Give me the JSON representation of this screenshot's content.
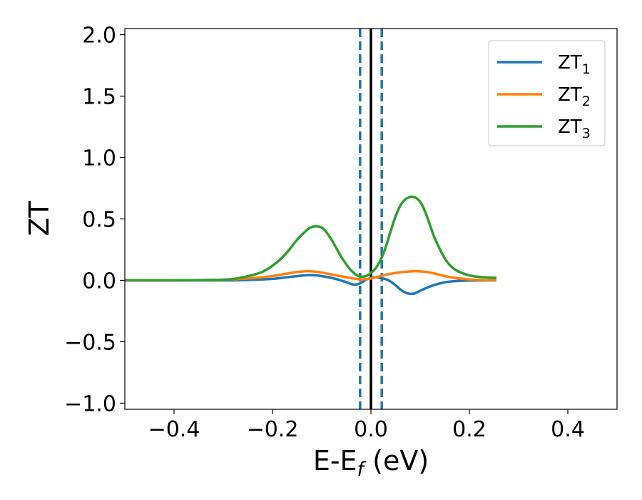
{
  "chart_data": {
    "type": "line",
    "title": "",
    "xlabel": "E-E",
    "xlabel_subscript": "f",
    "xlabel_suffix": " (eV)",
    "ylabel": "ZT",
    "xlim": [
      -0.5,
      0.5
    ],
    "ylim": [
      -1.05,
      2.05
    ],
    "xticks": [
      -0.4,
      -0.2,
      0.0,
      0.2,
      0.4
    ],
    "xtick_labels": [
      "−0.4",
      "−0.2",
      "0.0",
      "0.2",
      "0.4"
    ],
    "yticks": [
      -1.0,
      -0.5,
      0.0,
      0.5,
      1.0,
      1.5,
      2.0
    ],
    "ytick_labels": [
      "−1.0",
      "−0.5",
      "0.0",
      "0.5",
      "1.0",
      "1.5",
      "2.0"
    ],
    "grid": false,
    "legend_position": "top-right",
    "series": [
      {
        "name": "ZT",
        "subscript": "1",
        "color": "#1f77b4",
        "x": [
          -0.5,
          -0.4,
          -0.3,
          -0.25,
          -0.2,
          -0.16,
          -0.13,
          -0.11,
          -0.09,
          -0.07,
          -0.05,
          -0.04,
          -0.03,
          -0.02,
          -0.01,
          0.0,
          0.01,
          0.02,
          0.03,
          0.04,
          0.05,
          0.06,
          0.07,
          0.08,
          0.09,
          0.1,
          0.12,
          0.14,
          0.16,
          0.2,
          0.255
        ],
        "y": [
          0.0,
          0.0,
          0.0,
          0.003,
          0.012,
          0.03,
          0.042,
          0.04,
          0.028,
          0.01,
          -0.015,
          -0.03,
          -0.035,
          -0.02,
          0.005,
          0.02,
          0.025,
          0.018,
          0.01,
          -0.01,
          -0.04,
          -0.075,
          -0.1,
          -0.11,
          -0.105,
          -0.085,
          -0.05,
          -0.025,
          -0.01,
          -0.002,
          0.0
        ]
      },
      {
        "name": "ZT",
        "subscript": "2",
        "color": "#ff7f0e",
        "x": [
          -0.5,
          -0.4,
          -0.3,
          -0.25,
          -0.2,
          -0.17,
          -0.15,
          -0.13,
          -0.11,
          -0.09,
          -0.07,
          -0.05,
          -0.03,
          -0.02,
          -0.01,
          0.0,
          0.01,
          0.02,
          0.03,
          0.05,
          0.07,
          0.09,
          0.11,
          0.13,
          0.15,
          0.18,
          0.21,
          0.255
        ],
        "y": [
          0.0,
          0.0,
          0.005,
          0.015,
          0.035,
          0.055,
          0.068,
          0.075,
          0.07,
          0.055,
          0.04,
          0.025,
          0.012,
          0.008,
          0.01,
          0.015,
          0.025,
          0.035,
          0.045,
          0.06,
          0.07,
          0.075,
          0.07,
          0.055,
          0.035,
          0.015,
          0.005,
          0.0
        ]
      },
      {
        "name": "ZT",
        "subscript": "3",
        "color": "#2ca02c",
        "x": [
          -0.5,
          -0.4,
          -0.3,
          -0.26,
          -0.22,
          -0.19,
          -0.17,
          -0.15,
          -0.13,
          -0.12,
          -0.11,
          -0.1,
          -0.09,
          -0.08,
          -0.07,
          -0.06,
          -0.05,
          -0.04,
          -0.03,
          -0.02,
          -0.01,
          0.0,
          0.01,
          0.02,
          0.03,
          0.04,
          0.05,
          0.06,
          0.07,
          0.08,
          0.085,
          0.09,
          0.1,
          0.11,
          0.12,
          0.13,
          0.15,
          0.17,
          0.2,
          0.23,
          0.255
        ],
        "y": [
          0.0,
          0.0,
          0.005,
          0.025,
          0.07,
          0.15,
          0.23,
          0.33,
          0.41,
          0.435,
          0.44,
          0.43,
          0.39,
          0.33,
          0.26,
          0.19,
          0.13,
          0.08,
          0.045,
          0.03,
          0.035,
          0.06,
          0.1,
          0.17,
          0.27,
          0.4,
          0.52,
          0.61,
          0.66,
          0.68,
          0.68,
          0.675,
          0.64,
          0.56,
          0.45,
          0.34,
          0.18,
          0.09,
          0.04,
          0.025,
          0.02
        ]
      }
    ],
    "vlines": [
      {
        "x": -0.022,
        "color": "#1f77b4",
        "style": "dashed"
      },
      {
        "x": 0.0,
        "color": "#000000",
        "style": "solid"
      },
      {
        "x": 0.022,
        "color": "#1f77b4",
        "style": "dashed"
      }
    ]
  }
}
